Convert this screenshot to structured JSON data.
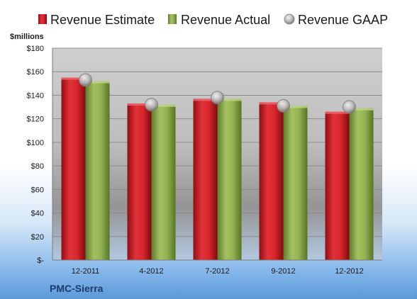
{
  "chart_data": {
    "type": "bar",
    "categories": [
      "12-2011",
      "4-2012",
      "7-2012",
      "9-2012",
      "12-2012"
    ],
    "series": [
      {
        "name": "Revenue Estimate",
        "values": [
          155,
          133,
          137,
          134,
          126
        ],
        "color": "#d42027",
        "mark": "bar"
      },
      {
        "name": "Revenue Actual",
        "values": [
          152,
          132,
          137,
          131,
          129
        ],
        "color": "#8cad4b",
        "mark": "bar"
      },
      {
        "name": "Revenue GAAP",
        "values": [
          153,
          132,
          138,
          131,
          130
        ],
        "color": "#b9b9b9",
        "mark": "circle"
      }
    ],
    "y_unit_label": "$millions",
    "y_tick_labels": [
      "$-",
      "$20",
      "$40",
      "$60",
      "$80",
      "$100",
      "$120",
      "$140",
      "$160",
      "$180"
    ],
    "ylim": [
      0,
      180
    ],
    "y_step": 20,
    "grid": true,
    "legend_position": "top",
    "company": "PMC-Sierra",
    "title": "",
    "xlabel": "",
    "ylabel": ""
  }
}
